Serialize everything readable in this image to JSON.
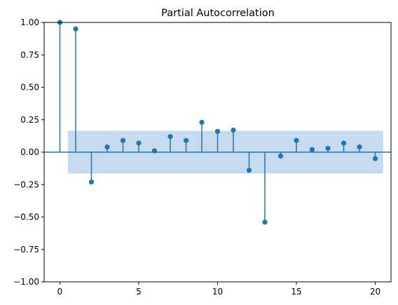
{
  "chart_data": {
    "type": "stem",
    "title": "Partial Autocorrelation",
    "xlabel": "",
    "ylabel": "",
    "xlim": [
      -1,
      21
    ],
    "ylim": [
      -1.0,
      1.0
    ],
    "x_ticks": [
      0,
      5,
      10,
      15,
      20
    ],
    "x_tick_labels": [
      "0",
      "5",
      "10",
      "15",
      "20"
    ],
    "y_ticks": [
      -1.0,
      -0.75,
      -0.5,
      -0.25,
      0.0,
      0.25,
      0.5,
      0.75,
      1.0
    ],
    "y_tick_labels": [
      "−1.00",
      "−0.75",
      "−0.50",
      "−0.25",
      "0.00",
      "0.25",
      "0.50",
      "0.75",
      "1.00"
    ],
    "lags": [
      0,
      1,
      2,
      3,
      4,
      5,
      6,
      7,
      8,
      9,
      10,
      11,
      12,
      13,
      14,
      15,
      16,
      17,
      18,
      19,
      20
    ],
    "values": [
      1.0,
      0.95,
      -0.23,
      0.04,
      0.09,
      0.07,
      0.01,
      0.12,
      0.09,
      0.23,
      0.16,
      0.17,
      -0.14,
      -0.54,
      -0.03,
      0.09,
      0.02,
      0.03,
      0.07,
      0.04,
      -0.05
    ],
    "confidence_band": {
      "x_start": 0.5,
      "x_end": 20.5,
      "lower": -0.165,
      "upper": 0.165
    },
    "colors": {
      "stem": "#1f77b4",
      "band": "#c6dbef",
      "axes": "#000000"
    },
    "grid": false
  }
}
